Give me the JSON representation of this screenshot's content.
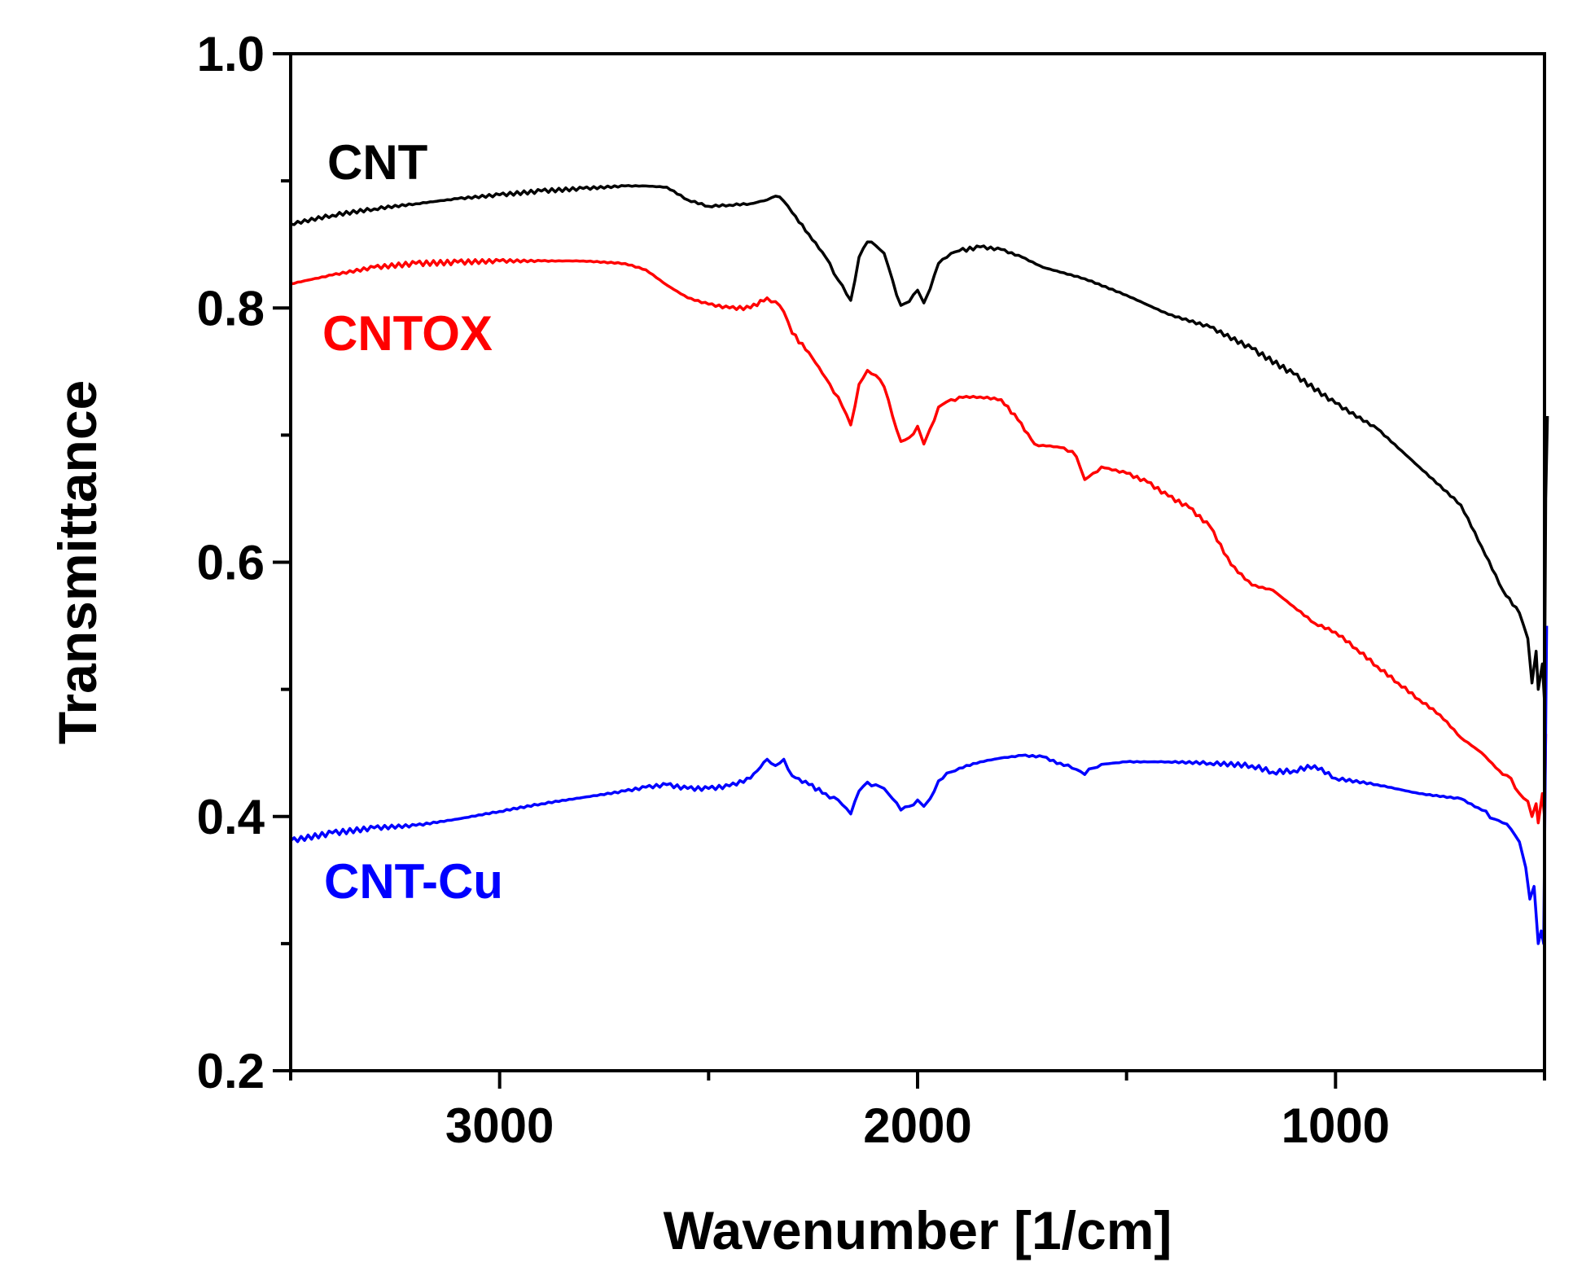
{
  "chart_data": {
    "type": "line",
    "title": "",
    "xlabel": "Wavenumber [1/cm]",
    "ylabel": "Transmittance",
    "xlim": [
      3500,
      500
    ],
    "ylim": [
      0.2,
      1.0
    ],
    "x_reversed": true,
    "grid": false,
    "legend": "inline labels at top-left of each curve",
    "x_major_ticks": [
      3000,
      2000,
      1000
    ],
    "x_minor_ticks": [
      3500,
      2500,
      1500,
      500
    ],
    "x_tick_labels": [
      "3000",
      "2000",
      "1000"
    ],
    "y_major_ticks": [
      0.2,
      0.4,
      0.6,
      0.8,
      1.0
    ],
    "y_minor_ticks": [
      0.3,
      0.5,
      0.7,
      0.9
    ],
    "y_tick_labels": [
      "0.2",
      "0.4",
      "0.6",
      "0.8",
      "1.0"
    ],
    "series": [
      {
        "name": "CNT",
        "color": "#000000",
        "x": [
          3500,
          3400,
          3300,
          3200,
          3100,
          3000,
          2900,
          2800,
          2700,
          2650,
          2600,
          2550,
          2500,
          2450,
          2400,
          2360,
          2340,
          2320,
          2300,
          2260,
          2220,
          2190,
          2160,
          2140,
          2120,
          2100,
          2080,
          2060,
          2040,
          2020,
          2000,
          1985,
          1970,
          1950,
          1920,
          1900,
          1850,
          1800,
          1750,
          1700,
          1600,
          1500,
          1400,
          1300,
          1200,
          1100,
          1000,
          900,
          800,
          700,
          650,
          600,
          560,
          540,
          530,
          520,
          515,
          505,
          500,
          497,
          493
        ],
        "y": [
          0.866,
          0.873,
          0.878,
          0.882,
          0.886,
          0.889,
          0.892,
          0.894,
          0.896,
          0.896,
          0.895,
          0.885,
          0.88,
          0.881,
          0.882,
          0.885,
          0.888,
          0.884,
          0.875,
          0.858,
          0.84,
          0.822,
          0.806,
          0.84,
          0.852,
          0.849,
          0.843,
          0.822,
          0.802,
          0.805,
          0.814,
          0.804,
          0.815,
          0.835,
          0.843,
          0.845,
          0.848,
          0.846,
          0.84,
          0.832,
          0.823,
          0.81,
          0.795,
          0.785,
          0.768,
          0.748,
          0.725,
          0.705,
          0.675,
          0.645,
          0.612,
          0.578,
          0.56,
          0.54,
          0.505,
          0.53,
          0.5,
          0.52,
          0.49,
          0.65,
          0.715
        ]
      },
      {
        "name": "CNTOX",
        "color": "#ff0000",
        "x": [
          3500,
          3400,
          3300,
          3200,
          3100,
          3000,
          2900,
          2800,
          2700,
          2650,
          2600,
          2550,
          2500,
          2450,
          2400,
          2360,
          2340,
          2320,
          2300,
          2260,
          2220,
          2190,
          2160,
          2140,
          2120,
          2100,
          2080,
          2060,
          2040,
          2020,
          2000,
          1985,
          1970,
          1950,
          1920,
          1900,
          1850,
          1800,
          1760,
          1720,
          1700,
          1650,
          1620,
          1600,
          1580,
          1560,
          1500,
          1450,
          1400,
          1350,
          1300,
          1250,
          1200,
          1150,
          1100,
          1050,
          1000,
          950,
          900,
          850,
          800,
          750,
          700,
          650,
          600,
          580,
          560,
          540,
          530,
          520,
          515,
          505,
          500,
          497
        ],
        "y": [
          0.819,
          0.826,
          0.832,
          0.835,
          0.836,
          0.837,
          0.837,
          0.837,
          0.835,
          0.83,
          0.818,
          0.808,
          0.803,
          0.8,
          0.8,
          0.808,
          0.805,
          0.797,
          0.78,
          0.765,
          0.745,
          0.73,
          0.708,
          0.74,
          0.751,
          0.747,
          0.738,
          0.715,
          0.695,
          0.698,
          0.707,
          0.693,
          0.705,
          0.722,
          0.728,
          0.73,
          0.73,
          0.728,
          0.712,
          0.693,
          0.692,
          0.69,
          0.683,
          0.665,
          0.67,
          0.675,
          0.67,
          0.663,
          0.652,
          0.643,
          0.628,
          0.598,
          0.582,
          0.578,
          0.565,
          0.552,
          0.545,
          0.532,
          0.518,
          0.505,
          0.492,
          0.48,
          0.462,
          0.45,
          0.433,
          0.43,
          0.418,
          0.412,
          0.4,
          0.41,
          0.395,
          0.418,
          0.4,
          0.465
        ]
      },
      {
        "name": "CNT-Cu",
        "color": "#0000ff",
        "x": [
          3500,
          3400,
          3300,
          3200,
          3100,
          3000,
          2900,
          2800,
          2700,
          2650,
          2600,
          2550,
          2500,
          2450,
          2400,
          2360,
          2340,
          2320,
          2300,
          2260,
          2220,
          2190,
          2160,
          2140,
          2120,
          2100,
          2080,
          2060,
          2040,
          2020,
          2000,
          1985,
          1970,
          1950,
          1920,
          1900,
          1850,
          1800,
          1750,
          1700,
          1650,
          1620,
          1600,
          1580,
          1560,
          1500,
          1400,
          1300,
          1200,
          1150,
          1100,
          1050,
          1000,
          900,
          800,
          700,
          650,
          620,
          600,
          580,
          560,
          545,
          535,
          525,
          515,
          508,
          502,
          498,
          495
        ],
        "y": [
          0.381,
          0.387,
          0.391,
          0.393,
          0.398,
          0.404,
          0.41,
          0.415,
          0.42,
          0.423,
          0.425,
          0.422,
          0.422,
          0.424,
          0.43,
          0.445,
          0.44,
          0.445,
          0.432,
          0.425,
          0.418,
          0.413,
          0.402,
          0.42,
          0.427,
          0.425,
          0.422,
          0.414,
          0.405,
          0.408,
          0.413,
          0.408,
          0.414,
          0.428,
          0.435,
          0.438,
          0.443,
          0.446,
          0.448,
          0.447,
          0.44,
          0.437,
          0.433,
          0.438,
          0.441,
          0.443,
          0.443,
          0.442,
          0.44,
          0.435,
          0.436,
          0.44,
          0.43,
          0.425,
          0.418,
          0.414,
          0.405,
          0.398,
          0.395,
          0.39,
          0.38,
          0.36,
          0.335,
          0.345,
          0.3,
          0.31,
          0.3,
          0.44,
          0.55
        ]
      }
    ],
    "annotations": [
      "CNT",
      "CNTOX",
      "CNT-Cu"
    ]
  }
}
